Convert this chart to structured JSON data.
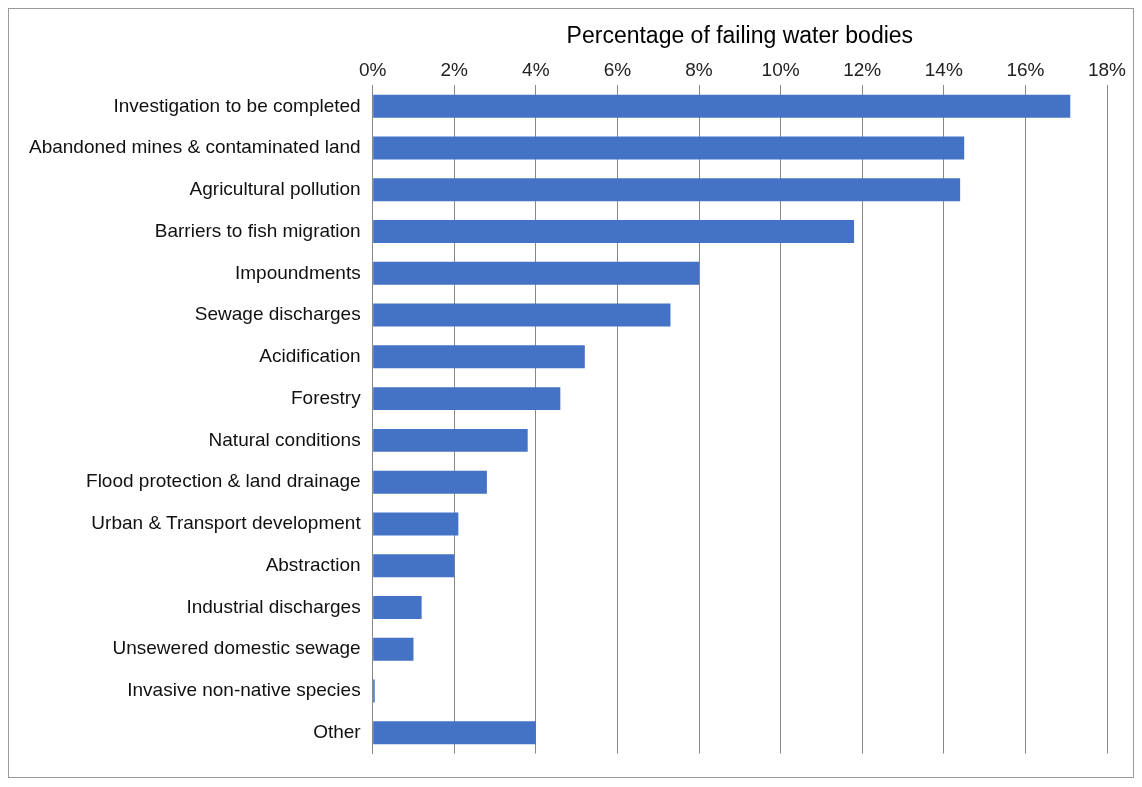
{
  "chart_data": {
    "type": "bar",
    "orientation": "horizontal",
    "xlabel": "Percentage of failing water bodies",
    "categories": [
      "Investigation to be completed",
      "Abandoned mines & contaminated land",
      "Agricultural pollution",
      "Barriers to fish migration",
      "Impoundments",
      "Sewage discharges",
      "Acidification",
      "Forestry",
      "Natural conditions",
      "Flood protection & land drainage",
      "Urban & Transport development",
      "Abstraction",
      "Industrial discharges",
      "Unsewered domestic sewage",
      "Invasive non-native species",
      "Other"
    ],
    "values": [
      17.1,
      14.5,
      14.4,
      11.8,
      8.0,
      7.3,
      5.2,
      4.6,
      3.8,
      2.8,
      2.1,
      2.0,
      1.2,
      1.0,
      0.05,
      4.0
    ],
    "color": "#4472c4",
    "xlim": [
      0,
      18
    ],
    "xticks": [
      {
        "value": 0,
        "label": "0%"
      },
      {
        "value": 2,
        "label": "2%"
      },
      {
        "value": 4,
        "label": "4%"
      },
      {
        "value": 6,
        "label": "6%"
      },
      {
        "value": 8,
        "label": "8%"
      },
      {
        "value": 10,
        "label": "10%"
      },
      {
        "value": 12,
        "label": "12%"
      },
      {
        "value": 14,
        "label": "14%"
      },
      {
        "value": 16,
        "label": "16%"
      },
      {
        "value": 18,
        "label": "18%"
      }
    ],
    "grid": "x",
    "legend": false
  }
}
